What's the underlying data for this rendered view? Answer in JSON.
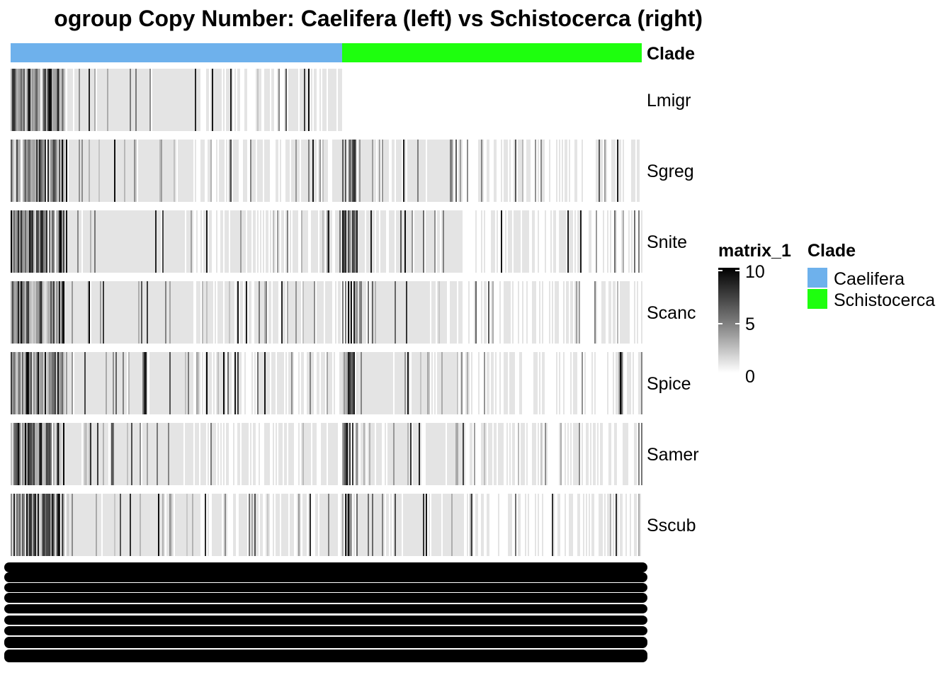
{
  "title": "ogroup Copy Number: Caelifera (left) vs Schistocerca (right)",
  "annotation": {
    "label": "Clade",
    "groups": [
      {
        "name": "Caelifera",
        "color": "#6EB1EC"
      },
      {
        "name": "Schistocerca",
        "color": "#1EFF0E"
      }
    ]
  },
  "legend": {
    "matrix_title": "matrix_1",
    "color_low": "#ffffff",
    "color_mid": "#777777",
    "color_high": "#000000",
    "ticks": [
      "10",
      "5",
      "0"
    ],
    "clade_title": "Clade"
  },
  "chart_data": {
    "type": "heatmap",
    "title": "ogroup Copy Number: Caelifera (left) vs Schistocerca (right)",
    "rows": [
      "Lmigr",
      "Sgreg",
      "Snite",
      "Scanc",
      "Spice",
      "Samer",
      "Sscub"
    ],
    "value_range": [
      0,
      10
    ],
    "column_groups": [
      "Caelifera",
      "Schistocerca"
    ],
    "group_proportions": [
      0.525,
      0.475
    ],
    "legend_placement": "right",
    "column_labels": "unreadable (overplotted)"
  }
}
